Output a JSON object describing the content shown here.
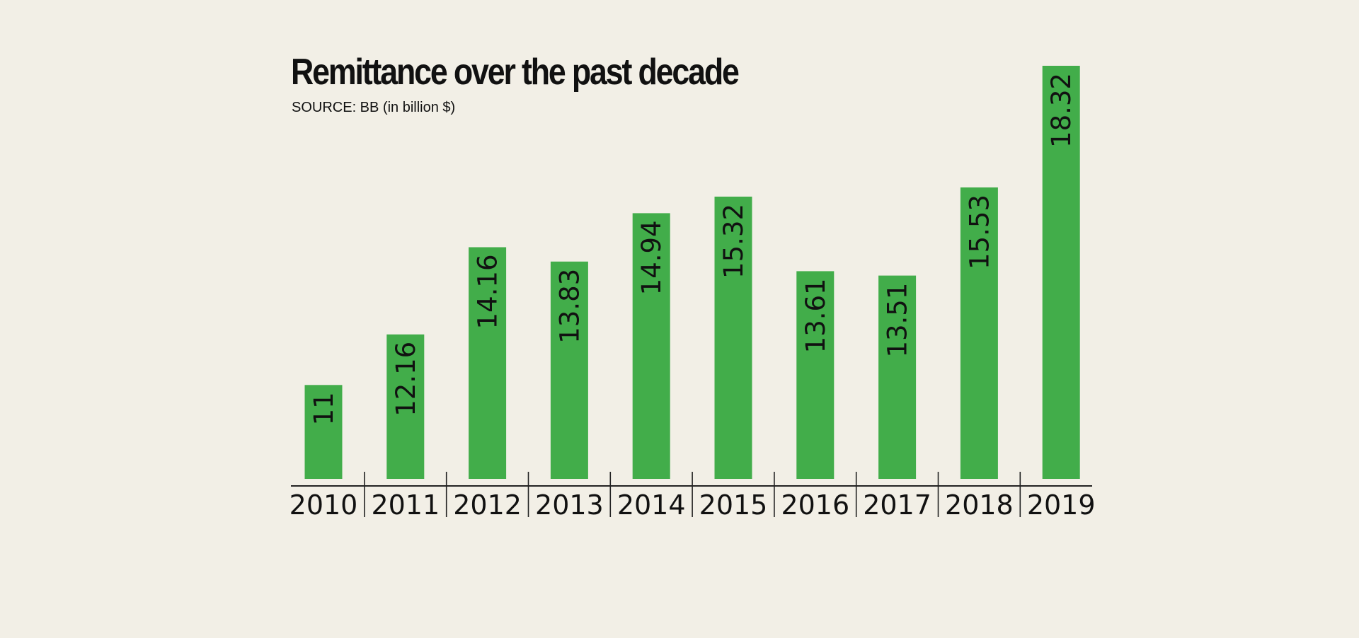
{
  "chart_data": {
    "type": "bar",
    "title": "Remittance over the past decade",
    "subtitle": "SOURCE: BB (in billion $)",
    "categories": [
      "2010",
      "2011",
      "2012",
      "2013",
      "2014",
      "2015",
      "2016",
      "2017",
      "2018",
      "2019"
    ],
    "values": [
      11,
      12.16,
      14.16,
      13.83,
      14.94,
      15.32,
      13.61,
      13.51,
      15.53,
      18.32
    ],
    "value_labels": [
      "11",
      "12.16",
      "14.16",
      "13.83",
      "14.94",
      "15.32",
      "13.61",
      "13.51",
      "15.53",
      "18.32"
    ],
    "xlabel": "",
    "ylabel": "",
    "ylim": [
      10,
      18.32
    ],
    "grid": false,
    "legend": "none",
    "colors": {
      "bar": "#42ad4a",
      "background": "#f2efe6",
      "text": "#111111",
      "axis": "#222222"
    }
  }
}
